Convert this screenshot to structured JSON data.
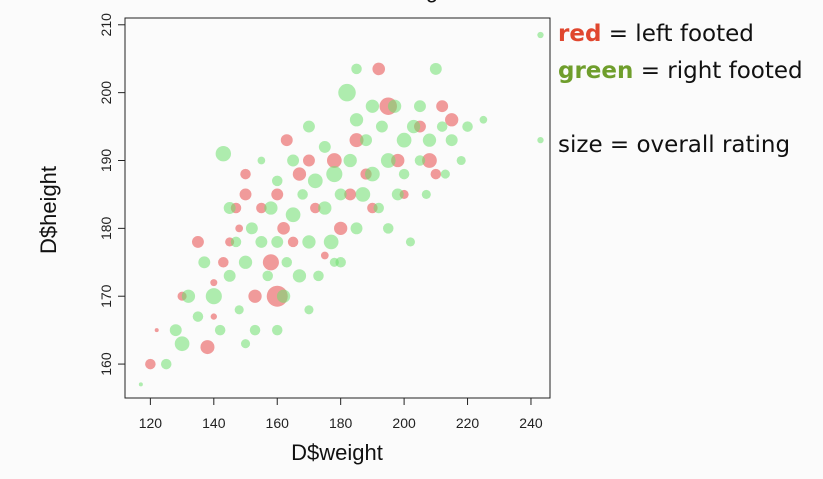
{
  "chart_data": {
    "type": "scatter",
    "title_fragment": "g",
    "xlabel": "D$weight",
    "ylabel": "D$height",
    "xlim": [
      112,
      246
    ],
    "ylim": [
      155,
      211
    ],
    "xticks": [
      120,
      140,
      160,
      180,
      200,
      220,
      240
    ],
    "yticks": [
      160,
      170,
      180,
      190,
      200,
      210
    ],
    "legend": {
      "red_keyword": "red",
      "red_text": " = left footed",
      "green_keyword": "green",
      "green_text": " = right footed",
      "size_text": "size = overall rating"
    },
    "colors": {
      "left": "#e84a4a",
      "right": "#6fe06f",
      "red_label": "#e0472f",
      "green_label": "#6f9e2c"
    },
    "series": [
      {
        "name": "left footed",
        "foot": "left",
        "points": [
          [
            120,
            160,
            70
          ],
          [
            122,
            165,
            60
          ],
          [
            130,
            170,
            68
          ],
          [
            135,
            178,
            72
          ],
          [
            138,
            162.5,
            75
          ],
          [
            140,
            172,
            65
          ],
          [
            143,
            175,
            70
          ],
          [
            145,
            178,
            68
          ],
          [
            148,
            180,
            66
          ],
          [
            150,
            185,
            72
          ],
          [
            150,
            188,
            70
          ],
          [
            153,
            170,
            74
          ],
          [
            155,
            183,
            70
          ],
          [
            158,
            175,
            78
          ],
          [
            160,
            170,
            85
          ],
          [
            160,
            185,
            72
          ],
          [
            162,
            180,
            73
          ],
          [
            165,
            178,
            70
          ],
          [
            167,
            188,
            74
          ],
          [
            170,
            190,
            72
          ],
          [
            172,
            183,
            70
          ],
          [
            175,
            176,
            66
          ],
          [
            178,
            190,
            76
          ],
          [
            180,
            180,
            74
          ],
          [
            183,
            185,
            72
          ],
          [
            185,
            193,
            75
          ],
          [
            188,
            188,
            71
          ],
          [
            190,
            183,
            70
          ],
          [
            192,
            203.5,
            73
          ],
          [
            195,
            198,
            80
          ],
          [
            198,
            190,
            74
          ],
          [
            200,
            185,
            68
          ],
          [
            205,
            195,
            72
          ],
          [
            208,
            190,
            76
          ],
          [
            210,
            188,
            70
          ],
          [
            212,
            198,
            72
          ],
          [
            215,
            196,
            74
          ],
          [
            140,
            167,
            64
          ],
          [
            147,
            183,
            70
          ],
          [
            163,
            193,
            72
          ]
        ]
      },
      {
        "name": "right footed",
        "foot": "right",
        "points": [
          [
            117,
            157,
            60
          ],
          [
            125,
            160,
            70
          ],
          [
            128,
            165,
            72
          ],
          [
            130,
            163,
            76
          ],
          [
            132,
            170,
            74
          ],
          [
            135,
            167,
            70
          ],
          [
            137,
            175,
            72
          ],
          [
            140,
            170,
            78
          ],
          [
            142,
            165,
            70
          ],
          [
            143,
            191,
            77
          ],
          [
            145,
            173,
            72
          ],
          [
            147,
            178,
            70
          ],
          [
            148,
            168,
            68
          ],
          [
            150,
            175,
            74
          ],
          [
            152,
            180,
            72
          ],
          [
            153,
            165,
            70
          ],
          [
            155,
            190,
            66
          ],
          [
            155,
            178,
            72
          ],
          [
            157,
            173,
            70
          ],
          [
            158,
            183,
            74
          ],
          [
            160,
            187,
            70
          ],
          [
            160,
            178,
            72
          ],
          [
            162,
            170,
            74
          ],
          [
            163,
            175,
            70
          ],
          [
            165,
            182,
            76
          ],
          [
            165,
            190,
            72
          ],
          [
            167,
            173,
            74
          ],
          [
            168,
            185,
            70
          ],
          [
            170,
            195,
            72
          ],
          [
            170,
            178,
            74
          ],
          [
            172,
            187,
            76
          ],
          [
            173,
            173,
            70
          ],
          [
            175,
            183,
            74
          ],
          [
            175,
            192,
            72
          ],
          [
            177,
            178,
            76
          ],
          [
            178,
            188,
            78
          ],
          [
            180,
            185,
            72
          ],
          [
            180,
            175,
            70
          ],
          [
            182,
            200,
            80
          ],
          [
            183,
            190,
            74
          ],
          [
            185,
            180,
            72
          ],
          [
            185,
            196,
            74
          ],
          [
            187,
            185,
            76
          ],
          [
            188,
            193,
            72
          ],
          [
            190,
            198,
            74
          ],
          [
            190,
            188,
            76
          ],
          [
            192,
            183,
            70
          ],
          [
            193,
            195,
            72
          ],
          [
            195,
            190,
            76
          ],
          [
            195,
            180,
            70
          ],
          [
            197,
            198,
            74
          ],
          [
            198,
            185,
            72
          ],
          [
            200,
            193,
            76
          ],
          [
            200,
            188,
            70
          ],
          [
            202,
            178,
            68
          ],
          [
            203,
            195,
            74
          ],
          [
            205,
            190,
            70
          ],
          [
            205,
            198,
            72
          ],
          [
            207,
            185,
            68
          ],
          [
            208,
            193,
            74
          ],
          [
            210,
            203.5,
            72
          ],
          [
            212,
            195,
            70
          ],
          [
            213,
            188,
            68
          ],
          [
            215,
            193,
            72
          ],
          [
            218,
            190,
            68
          ],
          [
            220,
            195,
            70
          ],
          [
            225,
            196,
            66
          ],
          [
            243,
            208.5,
            64
          ],
          [
            243,
            193,
            64
          ],
          [
            178,
            175,
            68
          ],
          [
            185,
            203.5,
            70
          ],
          [
            160,
            165,
            70
          ],
          [
            145,
            183,
            72
          ],
          [
            170,
            168,
            68
          ],
          [
            150,
            163,
            68
          ]
        ]
      }
    ]
  }
}
